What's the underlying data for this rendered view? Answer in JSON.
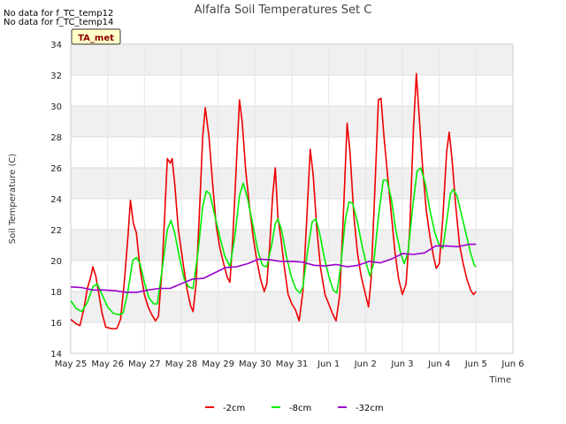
{
  "notes": [
    "No data for f_TC_temp12",
    "No data for f_TC_temp14"
  ],
  "tag": "TA_met",
  "chart_data": {
    "type": "line",
    "title": "Alfalfa Soil Temperatures Set C",
    "xlabel": "Time",
    "ylabel": "Soil Temperature (C)",
    "x_ticks": [
      "May 25",
      "May 26",
      "May 27",
      "May 28",
      "May 29",
      "May 30",
      "May 31",
      "Jun 1",
      "Jun 2",
      "Jun 3",
      "Jun 4",
      "Jun 5",
      "Jun 6"
    ],
    "xlim": [
      0,
      12
    ],
    "ylim": [
      14,
      34
    ],
    "y_ticks": [
      14,
      16,
      18,
      20,
      22,
      24,
      26,
      28,
      30,
      32,
      34
    ],
    "grid": true,
    "background_bands": true,
    "legend_position": "bottom-center",
    "series": [
      {
        "name": "-2cm",
        "color": "#ee0000",
        "points": [
          [
            0.0,
            16.2
          ],
          [
            0.15,
            15.9
          ],
          [
            0.25,
            15.8
          ],
          [
            0.35,
            16.8
          ],
          [
            0.45,
            18.2
          ],
          [
            0.55,
            19.0
          ],
          [
            0.6,
            19.6
          ],
          [
            0.68,
            19.0
          ],
          [
            0.75,
            18.0
          ],
          [
            0.85,
            16.6
          ],
          [
            0.95,
            15.7
          ],
          [
            1.1,
            15.6
          ],
          [
            1.25,
            15.6
          ],
          [
            1.35,
            16.2
          ],
          [
            1.45,
            18.5
          ],
          [
            1.55,
            21.5
          ],
          [
            1.62,
            23.9
          ],
          [
            1.7,
            22.4
          ],
          [
            1.78,
            21.8
          ],
          [
            1.88,
            19.5
          ],
          [
            2.0,
            17.8
          ],
          [
            2.1,
            17.0
          ],
          [
            2.2,
            16.5
          ],
          [
            2.3,
            16.1
          ],
          [
            2.38,
            16.4
          ],
          [
            2.48,
            19.5
          ],
          [
            2.55,
            23.0
          ],
          [
            2.62,
            26.6
          ],
          [
            2.7,
            26.3
          ],
          [
            2.75,
            26.6
          ],
          [
            2.82,
            25.0
          ],
          [
            2.92,
            22.0
          ],
          [
            3.05,
            19.8
          ],
          [
            3.15,
            18.2
          ],
          [
            3.25,
            17.1
          ],
          [
            3.32,
            16.7
          ],
          [
            3.4,
            18.5
          ],
          [
            3.5,
            23.5
          ],
          [
            3.58,
            28.0
          ],
          [
            3.65,
            29.9
          ],
          [
            3.75,
            28.0
          ],
          [
            3.85,
            25.0
          ],
          [
            3.95,
            22.2
          ],
          [
            4.05,
            20.8
          ],
          [
            4.15,
            19.8
          ],
          [
            4.25,
            18.9
          ],
          [
            4.32,
            18.6
          ],
          [
            4.4,
            21.5
          ],
          [
            4.5,
            26.5
          ],
          [
            4.58,
            30.4
          ],
          [
            4.65,
            29.0
          ],
          [
            4.75,
            25.8
          ],
          [
            4.85,
            23.5
          ],
          [
            4.95,
            21.5
          ],
          [
            5.05,
            20.0
          ],
          [
            5.15,
            18.8
          ],
          [
            5.25,
            18.0
          ],
          [
            5.32,
            18.5
          ],
          [
            5.4,
            21.0
          ],
          [
            5.48,
            24.2
          ],
          [
            5.55,
            26.0
          ],
          [
            5.62,
            22.8
          ],
          [
            5.7,
            21.5
          ],
          [
            5.8,
            19.5
          ],
          [
            5.9,
            17.8
          ],
          [
            6.0,
            17.2
          ],
          [
            6.1,
            16.8
          ],
          [
            6.2,
            16.1
          ],
          [
            6.3,
            18.0
          ],
          [
            6.4,
            22.5
          ],
          [
            6.5,
            27.2
          ],
          [
            6.58,
            25.5
          ],
          [
            6.68,
            22.0
          ],
          [
            6.78,
            19.5
          ],
          [
            6.9,
            17.8
          ],
          [
            7.0,
            17.2
          ],
          [
            7.1,
            16.6
          ],
          [
            7.2,
            16.1
          ],
          [
            7.3,
            17.8
          ],
          [
            7.4,
            23.0
          ],
          [
            7.5,
            28.9
          ],
          [
            7.58,
            27.0
          ],
          [
            7.68,
            23.0
          ],
          [
            7.78,
            20.5
          ],
          [
            7.88,
            19.0
          ],
          [
            7.98,
            18.0
          ],
          [
            8.08,
            17.0
          ],
          [
            8.15,
            18.8
          ],
          [
            8.25,
            24.5
          ],
          [
            8.35,
            30.4
          ],
          [
            8.42,
            30.5
          ],
          [
            8.5,
            28.0
          ],
          [
            8.6,
            25.5
          ],
          [
            8.7,
            23.0
          ],
          [
            8.8,
            20.5
          ],
          [
            8.9,
            18.8
          ],
          [
            9.0,
            17.8
          ],
          [
            9.1,
            18.5
          ],
          [
            9.2,
            22.0
          ],
          [
            9.3,
            28.5
          ],
          [
            9.38,
            32.1
          ],
          [
            9.45,
            29.5
          ],
          [
            9.55,
            26.0
          ],
          [
            9.65,
            23.2
          ],
          [
            9.75,
            21.5
          ],
          [
            9.85,
            20.2
          ],
          [
            9.92,
            19.5
          ],
          [
            10.0,
            19.8
          ],
          [
            10.1,
            22.8
          ],
          [
            10.2,
            27.0
          ],
          [
            10.27,
            28.3
          ],
          [
            10.35,
            26.5
          ],
          [
            10.45,
            23.5
          ],
          [
            10.55,
            21.0
          ],
          [
            10.65,
            19.8
          ],
          [
            10.75,
            18.8
          ],
          [
            10.85,
            18.1
          ],
          [
            10.93,
            17.8
          ],
          [
            11.0,
            18.0
          ]
        ]
      },
      {
        "name": "-8cm",
        "color": "#00ee00",
        "points": [
          [
            0.0,
            17.4
          ],
          [
            0.15,
            16.9
          ],
          [
            0.3,
            16.7
          ],
          [
            0.45,
            17.3
          ],
          [
            0.6,
            18.3
          ],
          [
            0.72,
            18.5
          ],
          [
            0.85,
            17.8
          ],
          [
            1.0,
            17.0
          ],
          [
            1.15,
            16.6
          ],
          [
            1.3,
            16.5
          ],
          [
            1.42,
            16.6
          ],
          [
            1.55,
            18.0
          ],
          [
            1.68,
            20.0
          ],
          [
            1.78,
            20.2
          ],
          [
            1.88,
            19.8
          ],
          [
            2.0,
            18.6
          ],
          [
            2.12,
            17.6
          ],
          [
            2.25,
            17.2
          ],
          [
            2.35,
            17.2
          ],
          [
            2.5,
            19.8
          ],
          [
            2.62,
            22.0
          ],
          [
            2.72,
            22.6
          ],
          [
            2.82,
            21.8
          ],
          [
            2.95,
            20.2
          ],
          [
            3.08,
            18.8
          ],
          [
            3.2,
            18.3
          ],
          [
            3.32,
            18.2
          ],
          [
            3.45,
            20.5
          ],
          [
            3.58,
            23.5
          ],
          [
            3.68,
            24.5
          ],
          [
            3.78,
            24.3
          ],
          [
            3.9,
            23.0
          ],
          [
            4.05,
            21.5
          ],
          [
            4.18,
            20.3
          ],
          [
            4.32,
            19.6
          ],
          [
            4.45,
            21.5
          ],
          [
            4.58,
            24.2
          ],
          [
            4.68,
            25.0
          ],
          [
            4.8,
            24.0
          ],
          [
            4.95,
            22.2
          ],
          [
            5.08,
            20.6
          ],
          [
            5.2,
            19.7
          ],
          [
            5.32,
            19.6
          ],
          [
            5.45,
            21.0
          ],
          [
            5.55,
            22.4
          ],
          [
            5.62,
            22.7
          ],
          [
            5.72,
            22.0
          ],
          [
            5.85,
            20.3
          ],
          [
            5.98,
            19.0
          ],
          [
            6.1,
            18.2
          ],
          [
            6.22,
            17.9
          ],
          [
            6.3,
            18.3
          ],
          [
            6.42,
            20.5
          ],
          [
            6.55,
            22.5
          ],
          [
            6.65,
            22.7
          ],
          [
            6.75,
            21.8
          ],
          [
            6.88,
            20.2
          ],
          [
            7.0,
            19.0
          ],
          [
            7.12,
            18.1
          ],
          [
            7.22,
            17.9
          ],
          [
            7.32,
            19.5
          ],
          [
            7.45,
            22.6
          ],
          [
            7.55,
            23.8
          ],
          [
            7.65,
            23.7
          ],
          [
            7.78,
            22.5
          ],
          [
            7.9,
            21.0
          ],
          [
            8.02,
            19.8
          ],
          [
            8.12,
            19.0
          ],
          [
            8.22,
            19.8
          ],
          [
            8.35,
            22.8
          ],
          [
            8.48,
            25.2
          ],
          [
            8.58,
            25.2
          ],
          [
            8.7,
            24.0
          ],
          [
            8.82,
            22.0
          ],
          [
            8.95,
            20.5
          ],
          [
            9.05,
            19.8
          ],
          [
            9.15,
            20.5
          ],
          [
            9.28,
            23.5
          ],
          [
            9.4,
            25.8
          ],
          [
            9.5,
            26.0
          ],
          [
            9.62,
            25.0
          ],
          [
            9.75,
            23.2
          ],
          [
            9.88,
            21.8
          ],
          [
            10.0,
            21.0
          ],
          [
            10.1,
            20.8
          ],
          [
            10.2,
            22.5
          ],
          [
            10.3,
            24.3
          ],
          [
            10.38,
            24.6
          ],
          [
            10.48,
            24.2
          ],
          [
            10.6,
            23.0
          ],
          [
            10.72,
            21.8
          ],
          [
            10.85,
            20.5
          ],
          [
            10.95,
            19.7
          ],
          [
            11.0,
            19.6
          ]
        ]
      },
      {
        "name": "-32cm",
        "color": "#9900cc",
        "points": [
          [
            0.0,
            18.3
          ],
          [
            0.3,
            18.25
          ],
          [
            0.6,
            18.1
          ],
          [
            0.9,
            18.1
          ],
          [
            1.2,
            18.05
          ],
          [
            1.5,
            17.95
          ],
          [
            1.8,
            17.95
          ],
          [
            2.1,
            18.1
          ],
          [
            2.4,
            18.2
          ],
          [
            2.7,
            18.2
          ],
          [
            3.0,
            18.5
          ],
          [
            3.3,
            18.8
          ],
          [
            3.6,
            18.85
          ],
          [
            3.9,
            19.2
          ],
          [
            4.2,
            19.55
          ],
          [
            4.5,
            19.6
          ],
          [
            4.8,
            19.8
          ],
          [
            5.1,
            20.1
          ],
          [
            5.4,
            20.05
          ],
          [
            5.7,
            19.95
          ],
          [
            6.0,
            19.95
          ],
          [
            6.3,
            19.9
          ],
          [
            6.6,
            19.7
          ],
          [
            6.9,
            19.65
          ],
          [
            7.2,
            19.75
          ],
          [
            7.5,
            19.6
          ],
          [
            7.8,
            19.7
          ],
          [
            8.1,
            19.95
          ],
          [
            8.4,
            19.85
          ],
          [
            8.7,
            20.1
          ],
          [
            9.0,
            20.45
          ],
          [
            9.3,
            20.4
          ],
          [
            9.6,
            20.5
          ],
          [
            9.9,
            20.95
          ],
          [
            10.2,
            20.95
          ],
          [
            10.5,
            20.9
          ],
          [
            10.8,
            21.05
          ],
          [
            11.0,
            21.05
          ]
        ]
      }
    ]
  }
}
